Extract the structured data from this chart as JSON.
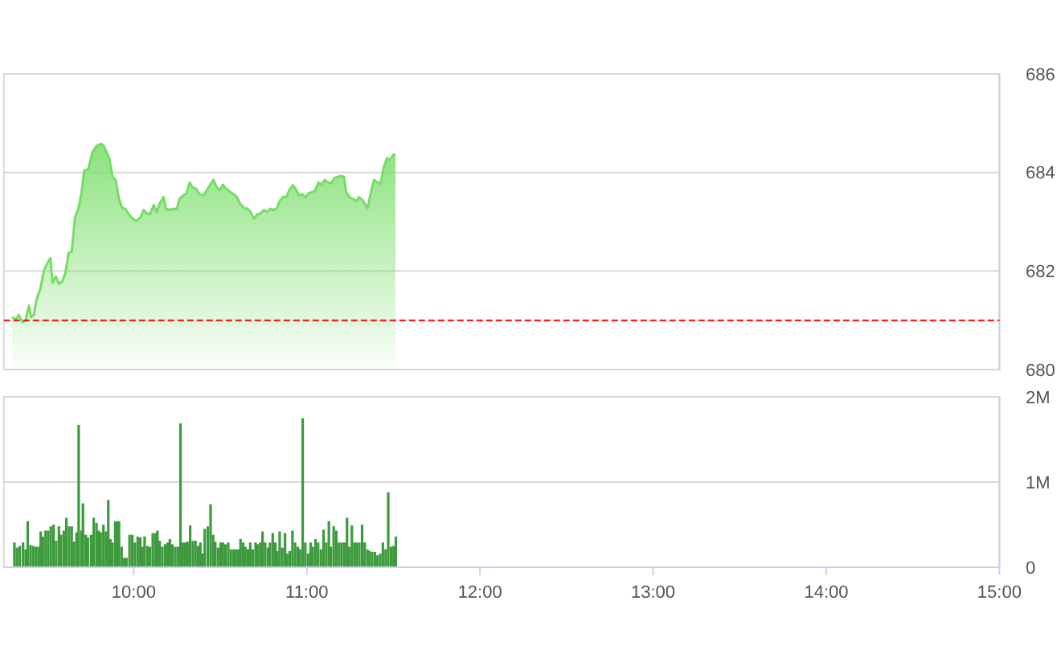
{
  "chart_data": [
    {
      "type": "area",
      "xlim": [
        9.25,
        15
      ],
      "ylim": [
        680,
        686
      ],
      "yticks": [
        680,
        682,
        684,
        686
      ],
      "grid": "y",
      "tick_labels": "y",
      "line_style": "solid",
      "series": [
        {
          "color": "#77dd66",
          "x": [
            9.296,
            9.321,
            9.336,
            9.358,
            9.376,
            9.395,
            9.407,
            9.423,
            9.438,
            9.46,
            9.482,
            9.506,
            9.519,
            9.531,
            9.55,
            9.568,
            9.587,
            9.605,
            9.624,
            9.642,
            9.661,
            9.68,
            9.698,
            9.714,
            9.738,
            9.76,
            9.785,
            9.81,
            9.828,
            9.841,
            9.859,
            9.878,
            9.896,
            9.915,
            9.933,
            9.952,
            9.971,
            9.995,
            10.017,
            10.039,
            10.057,
            10.076,
            10.094,
            10.116,
            10.132,
            10.15,
            10.172,
            10.187,
            10.206,
            10.231,
            10.249,
            10.265,
            10.286,
            10.305,
            10.323,
            10.342,
            10.361,
            10.379,
            10.404,
            10.423,
            10.441,
            10.46,
            10.478,
            10.497,
            10.515,
            10.534,
            10.559,
            10.577,
            10.596,
            10.614,
            10.636,
            10.658,
            10.676,
            10.695,
            10.713,
            10.732,
            10.751,
            10.769,
            10.788,
            10.806,
            10.825,
            10.843,
            10.862,
            10.881,
            10.899,
            10.918,
            10.936,
            10.955,
            10.973,
            10.992,
            11.011,
            11.029,
            11.048,
            11.066,
            11.085,
            11.103,
            11.122,
            11.141,
            11.159,
            11.178,
            11.196,
            11.215,
            11.227,
            11.246,
            11.27,
            11.289,
            11.301,
            11.32,
            11.339,
            11.351,
            11.37,
            11.388,
            11.407,
            11.425,
            11.444,
            11.462,
            11.481,
            11.5,
            11.512
          ],
          "values": [
            681.06,
            681.02,
            681.11,
            680.96,
            681.0,
            681.3,
            681.06,
            681.11,
            681.41,
            681.63,
            682.01,
            682.19,
            682.26,
            681.76,
            681.89,
            681.74,
            681.79,
            681.95,
            682.37,
            682.39,
            683.09,
            683.26,
            683.58,
            684.04,
            684.07,
            684.4,
            684.54,
            684.58,
            684.54,
            684.43,
            684.29,
            683.91,
            683.85,
            683.47,
            683.28,
            683.26,
            683.15,
            683.06,
            683.02,
            683.09,
            683.24,
            683.17,
            683.15,
            683.34,
            683.2,
            683.37,
            683.5,
            683.26,
            683.24,
            683.26,
            683.26,
            683.47,
            683.53,
            683.58,
            683.8,
            683.69,
            683.67,
            683.56,
            683.54,
            683.64,
            683.75,
            683.85,
            683.71,
            683.64,
            683.75,
            683.67,
            683.6,
            683.56,
            683.5,
            683.37,
            683.28,
            683.26,
            683.19,
            683.06,
            683.15,
            683.17,
            683.24,
            683.2,
            683.26,
            683.24,
            683.26,
            683.42,
            683.5,
            683.5,
            683.64,
            683.74,
            683.67,
            683.53,
            683.56,
            683.5,
            683.58,
            683.6,
            683.63,
            683.8,
            683.75,
            683.85,
            683.8,
            683.78,
            683.89,
            683.91,
            683.93,
            683.91,
            683.6,
            683.5,
            683.45,
            683.42,
            683.5,
            683.45,
            683.34,
            683.28,
            683.6,
            683.85,
            683.8,
            683.77,
            684.1,
            684.29,
            684.26,
            684.36,
            684.36
          ]
        }
      ],
      "ref_lines": [
        {
          "axis": "y",
          "value": 681.0,
          "color": "#ff0000",
          "line_style": "dashed"
        }
      ]
    },
    {
      "type": "bar",
      "xlim": [
        9.25,
        15
      ],
      "ylim": [
        0,
        2
      ],
      "yticks": [
        {
          "value": 0,
          "label": "0"
        },
        {
          "value": 1,
          "label": "1M"
        },
        {
          "value": 2,
          "label": "2M"
        }
      ],
      "xticks": [
        {
          "value": 10,
          "label": "10:00"
        },
        {
          "value": 11,
          "label": "11:00"
        },
        {
          "value": 12,
          "label": "12:00"
        },
        {
          "value": 13,
          "label": "13:00"
        },
        {
          "value": 14,
          "label": "14:00"
        },
        {
          "value": 15,
          "label": "15:00"
        }
      ],
      "grid": "y",
      "series": [
        {
          "color": "#3d9a3d",
          "x": [
            9.311,
            9.326,
            9.342,
            9.361,
            9.376,
            9.388,
            9.404,
            9.419,
            9.435,
            9.45,
            9.463,
            9.475,
            9.491,
            9.506,
            9.521,
            9.537,
            9.552,
            9.568,
            9.58,
            9.596,
            9.611,
            9.627,
            9.642,
            9.655,
            9.67,
            9.682,
            9.698,
            9.707,
            9.723,
            9.735,
            9.754,
            9.769,
            9.785,
            9.797,
            9.809,
            9.825,
            9.84,
            9.853,
            9.865,
            9.877,
            9.893,
            9.905,
            9.915,
            9.93,
            9.945,
            9.958,
            9.976,
            9.992,
            10.007,
            10.023,
            10.038,
            10.051,
            10.063,
            10.079,
            10.094,
            10.11,
            10.125,
            10.137,
            10.15,
            10.165,
            10.181,
            10.196,
            10.209,
            10.224,
            10.24,
            10.255,
            10.27,
            10.283,
            10.298,
            10.311,
            10.326,
            10.342,
            10.357,
            10.372,
            10.385,
            10.397,
            10.41,
            10.428,
            10.444,
            10.459,
            10.471,
            10.487,
            10.502,
            10.515,
            10.53,
            10.546,
            10.561,
            10.577,
            10.589,
            10.604,
            10.617,
            10.632,
            10.645,
            10.66,
            10.673,
            10.688,
            10.704,
            10.716,
            10.731,
            10.744,
            10.759,
            10.775,
            10.787,
            10.803,
            10.818,
            10.83,
            10.843,
            10.858,
            10.874,
            10.886,
            10.901,
            10.917,
            10.932,
            10.948,
            10.96,
            10.976,
            10.991,
            11.007,
            11.022,
            11.034,
            11.05,
            11.065,
            11.081,
            11.096,
            11.112,
            11.127,
            11.139,
            11.155,
            11.17,
            11.186,
            11.201,
            11.217,
            11.232,
            11.244,
            11.26,
            11.275,
            11.288,
            11.303,
            11.319,
            11.334,
            11.35,
            11.362,
            11.377,
            11.393,
            11.408,
            11.424,
            11.439,
            11.455,
            11.47,
            11.486,
            11.501,
            11.514
          ],
          "values": [
            0.29,
            0.23,
            0.25,
            0.29,
            0.21,
            0.54,
            0.26,
            0.25,
            0.24,
            0.24,
            0.42,
            0.36,
            0.43,
            0.43,
            0.48,
            0.5,
            0.31,
            0.48,
            0.38,
            0.43,
            0.58,
            0.48,
            0.48,
            0.3,
            0.41,
            1.67,
            0.43,
            0.75,
            0.38,
            0.35,
            0.38,
            0.58,
            0.52,
            0.43,
            0.41,
            0.5,
            0.42,
            0.79,
            0.33,
            0.29,
            0.54,
            0.54,
            0.54,
            0.24,
            0.11,
            0.11,
            0.38,
            0.38,
            0.29,
            0.36,
            0.35,
            0.24,
            0.36,
            0.25,
            0.24,
            0.4,
            0.4,
            0.43,
            0.31,
            0.24,
            0.27,
            0.29,
            0.33,
            0.27,
            0.24,
            0.24,
            1.69,
            0.29,
            0.29,
            0.3,
            0.49,
            0.31,
            0.31,
            0.25,
            0.29,
            0.16,
            0.45,
            0.48,
            0.74,
            0.38,
            0.3,
            0.23,
            0.29,
            0.29,
            0.27,
            0.29,
            0.21,
            0.21,
            0.21,
            0.21,
            0.33,
            0.29,
            0.24,
            0.21,
            0.29,
            0.21,
            0.29,
            0.27,
            0.29,
            0.42,
            0.29,
            0.23,
            0.29,
            0.4,
            0.29,
            0.19,
            0.42,
            0.23,
            0.4,
            0.16,
            0.19,
            0.43,
            0.29,
            0.24,
            0.21,
            1.75,
            0.29,
            0.16,
            0.29,
            0.24,
            0.33,
            0.29,
            0.21,
            0.44,
            0.29,
            0.54,
            0.24,
            0.48,
            0.43,
            0.29,
            0.29,
            0.29,
            0.58,
            0.24,
            0.49,
            0.29,
            0.29,
            0.29,
            0.5,
            0.29,
            0.21,
            0.19,
            0.18,
            0.18,
            0.14,
            0.16,
            0.29,
            0.21,
            0.88,
            0.24,
            0.25,
            0.36
          ]
        }
      ]
    }
  ]
}
